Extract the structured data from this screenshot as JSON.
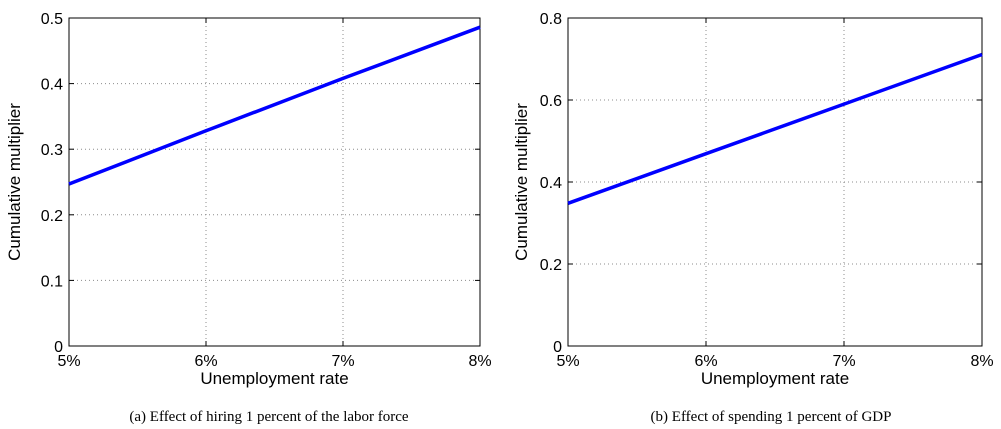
{
  "chart_data": [
    {
      "type": "line",
      "caption": "(a)  Effect of hiring 1 percent of the labor force",
      "xlabel": "Unemployment rate",
      "ylabel": "Cumulative multiplier",
      "xlim": [
        5,
        8
      ],
      "ylim": [
        0,
        0.5
      ],
      "xticks": [
        5,
        6,
        7,
        8
      ],
      "xtick_labels": [
        "5%",
        "6%",
        "7%",
        "8%"
      ],
      "yticks": [
        0,
        0.1,
        0.2,
        0.3,
        0.4,
        0.5
      ],
      "ytick_labels": [
        "0",
        "0.1",
        "0.2",
        "0.3",
        "0.4",
        "0.5"
      ],
      "grid": true,
      "series": [
        {
          "color": "#0000ff",
          "x": [
            5,
            6,
            7,
            8
          ],
          "y": [
            0.247,
            0.328,
            0.408,
            0.486
          ]
        }
      ]
    },
    {
      "type": "line",
      "caption": "(b)  Effect of spending 1 percent of GDP",
      "xlabel": "Unemployment rate",
      "ylabel": "Cumulative multiplier",
      "xlim": [
        5,
        8
      ],
      "ylim": [
        0,
        0.8
      ],
      "xticks": [
        5,
        6,
        7,
        8
      ],
      "xtick_labels": [
        "5%",
        "6%",
        "7%",
        "8%"
      ],
      "yticks": [
        0,
        0.2,
        0.4,
        0.6,
        0.8
      ],
      "ytick_labels": [
        "0",
        "0.2",
        "0.4",
        "0.6",
        "0.8"
      ],
      "grid": true,
      "series": [
        {
          "color": "#0000ff",
          "x": [
            5,
            6,
            7,
            8
          ],
          "y": [
            0.348,
            0.469,
            0.59,
            0.711
          ]
        }
      ]
    }
  ]
}
